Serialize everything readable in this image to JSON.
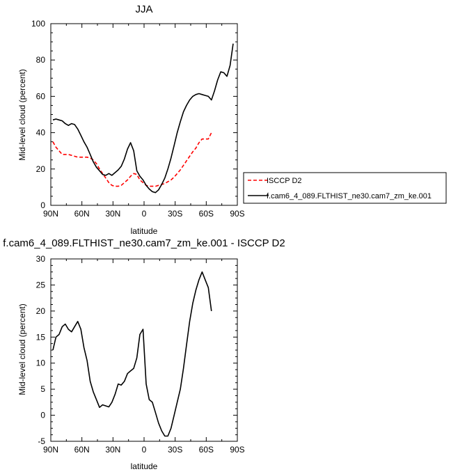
{
  "chart_data": [
    {
      "type": "line",
      "title": "JJA",
      "xlabel": "latitude",
      "ylabel": "Mid-level cloud (percent)",
      "xlim": [
        90,
        -90
      ],
      "ylim": [
        0,
        100
      ],
      "xticks": [
        90,
        60,
        30,
        0,
        -30,
        -60,
        -90
      ],
      "xtick_labels": [
        "90N",
        "60N",
        "30N",
        "0",
        "30S",
        "60S",
        "90S"
      ],
      "yticks": [
        0,
        20,
        40,
        60,
        80,
        100
      ],
      "ytick_labels": [
        "0",
        "20",
        "40",
        "60",
        "80",
        "100"
      ],
      "grid": false,
      "legend": "right",
      "series": [
        {
          "name": "ISCCP D2",
          "color": "#ff0000",
          "dash": "dashed",
          "x": [
            88,
            85,
            82,
            79,
            76,
            73,
            70,
            67,
            64,
            61,
            58,
            55,
            52,
            49,
            46,
            43,
            40,
            37,
            34,
            31,
            28,
            25,
            22,
            19,
            16,
            13,
            10,
            7,
            4,
            1,
            -2,
            -5,
            -8,
            -11,
            -14,
            -17,
            -20,
            -23,
            -26,
            -29,
            -32,
            -35,
            -38,
            -41,
            -44,
            -47,
            -50,
            -53,
            -56,
            -59,
            -62,
            -65
          ],
          "y": [
            35,
            32,
            30,
            28,
            28,
            28,
            27.5,
            27,
            26.5,
            26.5,
            26.5,
            26.5,
            26,
            25,
            23,
            20,
            17.5,
            15,
            12.5,
            11,
            10.5,
            10.5,
            11,
            12.5,
            14,
            16,
            17.5,
            17,
            14,
            12.5,
            11,
            10.5,
            10.5,
            10.5,
            11,
            11.5,
            12,
            13,
            14,
            15.5,
            17.5,
            19.5,
            22,
            24.5,
            27,
            29.5,
            31.5,
            34.5,
            36.5,
            36.5,
            36.5,
            40
          ]
        },
        {
          "name": "f.cam6_4_089.FLTHIST_ne30.cam7_zm_ke.001",
          "color": "#000000",
          "dash": "solid",
          "x": [
            88,
            85,
            82,
            79,
            76,
            73,
            70,
            67,
            64,
            61,
            58,
            55,
            52,
            49,
            46,
            43,
            40,
            37,
            34,
            31,
            28,
            25,
            22,
            19,
            16,
            13,
            10,
            7,
            4,
            1,
            -2,
            -5,
            -8,
            -11,
            -14,
            -17,
            -20,
            -23,
            -26,
            -29,
            -32,
            -35,
            -38,
            -41,
            -44,
            -47,
            -50,
            -53,
            -56,
            -59,
            -62,
            -65,
            -68,
            -71,
            -74,
            -77,
            -80,
            -83,
            -86
          ],
          "y": [
            47,
            47.5,
            47,
            46.5,
            45,
            44,
            45,
            44.5,
            42,
            38.5,
            35,
            32,
            28,
            24,
            21,
            19,
            17,
            16.5,
            17.5,
            16.5,
            18,
            19.5,
            21.5,
            25.5,
            31,
            34.5,
            30,
            19,
            16,
            14,
            11,
            9,
            7.5,
            7,
            8.5,
            11.5,
            15,
            20,
            26,
            33,
            40,
            46,
            51.5,
            55,
            58,
            60,
            61,
            61.5,
            61,
            60.5,
            60,
            58,
            63,
            69,
            73.5,
            73,
            71,
            77,
            89
          ]
        }
      ]
    },
    {
      "type": "line",
      "title": "f.cam6_4_089.FLTHIST_ne30.cam7_zm_ke.001 - ISCCP D2",
      "xlabel": "latitude",
      "ylabel": "Mid-level cloud (percent)",
      "xlim": [
        90,
        -90
      ],
      "ylim": [
        -5,
        30
      ],
      "xticks": [
        90,
        60,
        30,
        0,
        -30,
        -60,
        -90
      ],
      "xtick_labels": [
        "90N",
        "60N",
        "30N",
        "0",
        "30S",
        "60S",
        "90S"
      ],
      "yticks": [
        -5,
        0,
        5,
        10,
        15,
        20,
        25,
        30
      ],
      "ytick_labels": [
        "-5",
        "0",
        "5",
        "10",
        "15",
        "20",
        "25",
        "30"
      ],
      "grid": false,
      "series": [
        {
          "color": "#000000",
          "dash": "solid",
          "x": [
            88,
            85,
            82,
            79,
            76,
            73,
            70,
            67,
            64,
            61,
            58,
            55,
            52,
            49,
            46,
            43,
            40,
            37,
            34,
            31,
            28,
            25,
            22,
            19,
            16,
            13,
            10,
            7,
            4,
            1,
            -2,
            -5,
            -8,
            -11,
            -14,
            -17,
            -20,
            -23,
            -26,
            -29,
            -32,
            -35,
            -38,
            -41,
            -44,
            -47,
            -50,
            -53,
            -56,
            -59,
            -62,
            -65
          ],
          "y": [
            12.5,
            15,
            15.5,
            17,
            17.5,
            16.5,
            16,
            17,
            18,
            16.5,
            13,
            10.5,
            6.5,
            4.5,
            3,
            1.5,
            2,
            1.8,
            1.6,
            2.5,
            4,
            6,
            5.8,
            6.5,
            8,
            8.5,
            9,
            11,
            15.5,
            16.5,
            6,
            3,
            2.5,
            0.5,
            -1.5,
            -3,
            -4,
            -4,
            -2.5,
            0,
            2.5,
            5,
            9,
            13.5,
            18,
            21.5,
            24,
            26,
            27.5,
            26,
            24.5,
            20
          ]
        }
      ]
    }
  ]
}
